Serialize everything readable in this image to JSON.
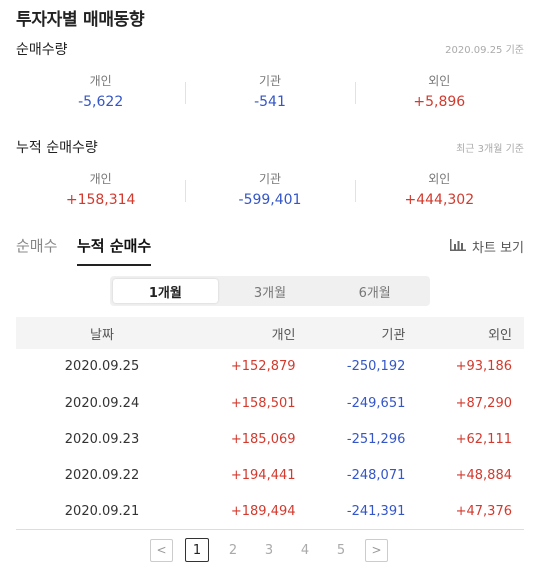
{
  "page": {
    "title": "투자자별 매매동향"
  },
  "net_volume": {
    "title": "순매수량",
    "note": "2020.09.25 기준",
    "items": [
      {
        "label": "개인",
        "value": "-5,622",
        "sign": "minus"
      },
      {
        "label": "기관",
        "value": "-541",
        "sign": "minus"
      },
      {
        "label": "외인",
        "value": "+5,896",
        "sign": "plus"
      }
    ]
  },
  "cumulative_volume": {
    "title": "누적 순매수량",
    "note": "최근 3개월 기준",
    "items": [
      {
        "label": "개인",
        "value": "+158,314",
        "sign": "plus"
      },
      {
        "label": "기관",
        "value": "-599,401",
        "sign": "minus"
      },
      {
        "label": "외인",
        "value": "+444,302",
        "sign": "plus"
      }
    ]
  },
  "tabs": {
    "inactive": "순매수",
    "active": "누적 순매수",
    "chart_link": "차트 보기"
  },
  "periods": [
    "1개월",
    "3개월",
    "6개월"
  ],
  "table": {
    "headers": [
      "날짜",
      "개인",
      "기관",
      "외인"
    ],
    "rows": [
      [
        "2020.09.25",
        "+152,879",
        "-250,192",
        "+93,186"
      ],
      [
        "2020.09.24",
        "+158,501",
        "-249,651",
        "+87,290"
      ],
      [
        "2020.09.23",
        "+185,069",
        "-251,296",
        "+62,111"
      ],
      [
        "2020.09.22",
        "+194,441",
        "-248,071",
        "+48,884"
      ],
      [
        "2020.09.21",
        "+189,494",
        "-241,391",
        "+47,376"
      ]
    ]
  },
  "pagination": {
    "prev": "<",
    "next": ">",
    "pages": [
      "1",
      "2",
      "3",
      "4",
      "5"
    ],
    "current": "1"
  },
  "colors": {
    "plus": "#d23a2e",
    "minus": "#3456c7"
  },
  "icons": {
    "chart_link": "bar-chart-icon"
  }
}
